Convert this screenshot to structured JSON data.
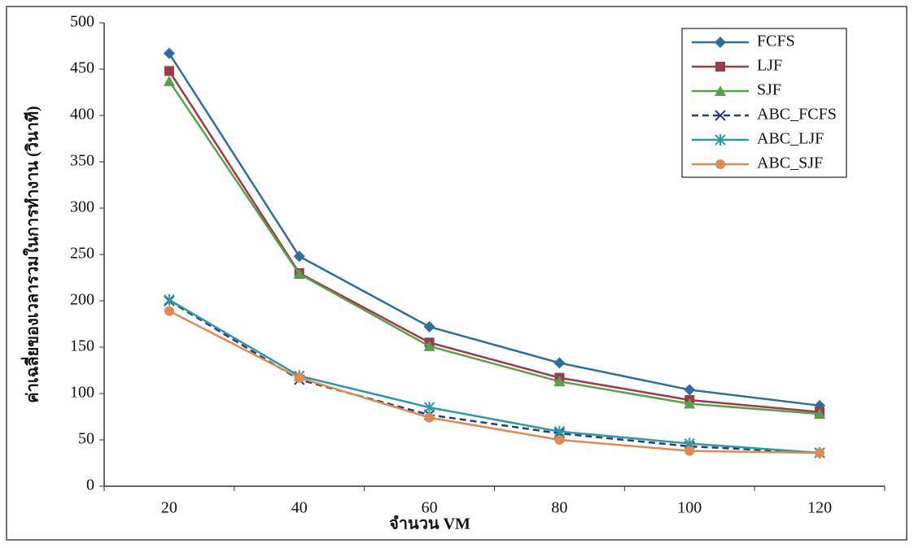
{
  "chart_data": {
    "type": "line",
    "x_label": "จำนวน VM",
    "y_label": "ค่าเฉลี่ยของเวลารวมในการทำงาน (วินาที)",
    "categories": [
      20,
      40,
      60,
      80,
      100,
      120
    ],
    "ylim": [
      0,
      500
    ],
    "yticks": [
      0,
      50,
      100,
      150,
      200,
      250,
      300,
      350,
      400,
      450,
      500
    ],
    "grid": false,
    "legend": "upper right",
    "series": [
      {
        "name": "FCFS",
        "color": "#2e6ca4",
        "marker": "diamond",
        "dashed": false,
        "values": [
          467,
          248,
          172,
          133,
          104,
          87
        ]
      },
      {
        "name": "LJF",
        "color": "#9b3a4a",
        "marker": "square",
        "dashed": false,
        "values": [
          448,
          230,
          155,
          117,
          93,
          80
        ]
      },
      {
        "name": "SJF",
        "color": "#5aa04a",
        "marker": "triangle",
        "dashed": false,
        "values": [
          437,
          229,
          151,
          113,
          89,
          78
        ]
      },
      {
        "name": "ABC_FCFS",
        "color": "#2b3a7a",
        "marker": "x",
        "dashed": true,
        "values": [
          200,
          115,
          77,
          57,
          43,
          36
        ]
      },
      {
        "name": "ABC_LJF",
        "color": "#2a9aaa",
        "marker": "star",
        "dashed": false,
        "values": [
          201,
          119,
          85,
          59,
          46,
          36
        ]
      },
      {
        "name": "ABC_SJF",
        "color": "#e08a50",
        "marker": "circle",
        "dashed": false,
        "values": [
          189,
          117,
          74,
          50,
          38,
          36
        ]
      }
    ]
  }
}
